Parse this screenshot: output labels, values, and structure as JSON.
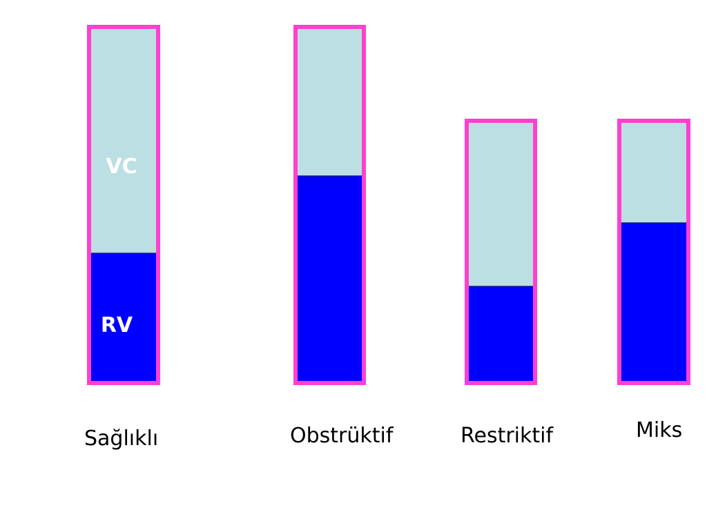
{
  "chart_data": {
    "type": "bar",
    "stacked": true,
    "categories": [
      "Sağlıklı",
      "Obstrüktif",
      "Restriktif",
      "Miks"
    ],
    "series": [
      {
        "name": "RV",
        "values": [
          185,
          297,
          137,
          229
        ],
        "color": "#0000ff"
      },
      {
        "name": "VC",
        "values": [
          325,
          213,
          237,
          145
        ],
        "color": "#bbdfe2"
      }
    ],
    "totals": [
      510,
      510,
      374,
      374
    ],
    "segment_labels": {
      "vc": "VC",
      "rv": "RV"
    },
    "segment_label_color": "#ffffff",
    "outline_color": "#ff3fcf",
    "legend": "none",
    "grid": false,
    "title": "",
    "xlabel": "",
    "ylabel": ""
  }
}
